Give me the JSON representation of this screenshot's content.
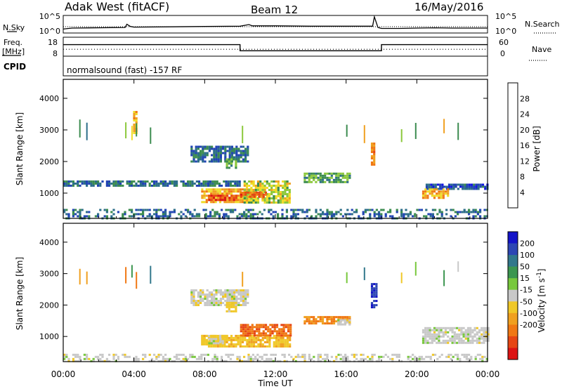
{
  "header": {
    "station": "Adak West (fitACF)",
    "beam": "Beam 12",
    "date": "16/May/2016"
  },
  "strip_labels": {
    "nsky": "N.Sky",
    "nsearch": "N.Search",
    "freq_line1": "Freq.",
    "freq_line2": "[MHz]",
    "nave": "Nave",
    "cpid": "CPID"
  },
  "strip_ticks": {
    "nsky_left": [
      "10^5",
      "10^0"
    ],
    "nsky_right": [
      "10^5",
      "10^0"
    ],
    "freq_left": [
      "18",
      "8"
    ],
    "freq_right": [
      "60",
      "0"
    ]
  },
  "cpid_text": "normalsound (fast) -157 RF",
  "colors": {
    "axis": "#000000",
    "power_scale": [
      "#1414e6",
      "#2244b4",
      "#2d6e8a",
      "#3c8c50",
      "#8cc83c",
      "#f0dc28",
      "#f0a020",
      "#f07814",
      "#e64614",
      "#dc1414"
    ],
    "velocity_scale": [
      "#1414c8",
      "#2d46b4",
      "#32788c",
      "#3c9650",
      "#78c83c",
      "#c8c8c8",
      "#f0c828",
      "#f0a020",
      "#f07814",
      "#e64614",
      "#dc1414"
    ]
  },
  "chart_data": [
    {
      "type": "line",
      "panel": "N.Sky / N.Search",
      "ylabel": "N.Sky",
      "right_label": "N.Search",
      "note": "noise level, log scale 10^0 to 10^5",
      "x_hours": [
        0.0,
        0.3,
        0.5,
        3.5,
        3.6,
        3.8,
        4.0,
        6.0,
        8.0,
        10.0,
        10.5,
        10.7,
        12.0,
        14.0,
        16.0,
        17.5,
        17.6,
        17.8,
        18.0,
        19.0,
        20.0,
        21.0,
        22.0,
        24.0
      ],
      "values": [
        1.0,
        1.2,
        1.3,
        1.5,
        2.5,
        1.8,
        1.6,
        1.7,
        1.8,
        1.9,
        2.4,
        2.0,
        2.0,
        1.9,
        1.9,
        1.9,
        4.8,
        1.5,
        1.2,
        1.2,
        1.3,
        1.4,
        1.3,
        1.3
      ],
      "ylim": [
        0,
        5
      ]
    },
    {
      "type": "line",
      "panel": "Freq. / Nave",
      "ylabel": "Freq. [MHz]",
      "right_label": "Nave",
      "series": [
        {
          "name": "Freq.",
          "x_hours": [
            0,
            10.0,
            10.0,
            18.0,
            18.0,
            24
          ],
          "values": [
            14.4,
            14.4,
            10.8,
            10.8,
            14.4,
            14.4
          ]
        },
        {
          "name": "Nave",
          "x_hours": [
            0,
            24
          ],
          "values": [
            22,
            22
          ]
        }
      ],
      "ylim_left": [
        8,
        18
      ],
      "ylim_right": [
        0,
        60
      ]
    },
    {
      "type": "heatmap",
      "panel": "Power",
      "ylabel": "Slant Range [km]",
      "colorbar_label": "Power [dB]",
      "colorbar_ticks": [
        "4",
        "8",
        "12",
        "16",
        "20",
        "24",
        "28"
      ],
      "colorbar_range": [
        0,
        32
      ],
      "yticks": [
        "1000",
        "2000",
        "3000",
        "4000"
      ],
      "ylim": [
        200,
        4600
      ],
      "xlim": [
        0,
        24
      ],
      "regions": [
        {
          "t0": 0.0,
          "t1": 10.0,
          "r0": 1250,
          "r1": 1400,
          "value": 8
        },
        {
          "t0": 7.8,
          "t1": 10.5,
          "r0": 700,
          "r1": 1150,
          "value": 20
        },
        {
          "t0": 8.2,
          "t1": 9.8,
          "r0": 750,
          "r1": 950,
          "value": 27
        },
        {
          "t0": 10.2,
          "t1": 12.8,
          "r0": 700,
          "r1": 1400,
          "value": 16
        },
        {
          "t0": 10.0,
          "t1": 11.5,
          "r0": 850,
          "r1": 1050,
          "value": 25
        },
        {
          "t0": 7.2,
          "t1": 10.4,
          "r0": 2000,
          "r1": 2500,
          "value": 8
        },
        {
          "t0": 9.2,
          "t1": 9.8,
          "r0": 1800,
          "r1": 2100,
          "value": 12
        },
        {
          "t0": 13.6,
          "t1": 16.2,
          "r0": 1350,
          "r1": 1650,
          "value": 12
        },
        {
          "t0": 20.5,
          "t1": 24.0,
          "r0": 1100,
          "r1": 1300,
          "value": 6
        },
        {
          "t0": 20.3,
          "t1": 21.8,
          "r0": 850,
          "r1": 1150,
          "value": 21
        },
        {
          "t0": 17.4,
          "t1": 17.6,
          "r0": 1900,
          "r1": 2600,
          "value": 23
        },
        {
          "t0": 3.95,
          "t1": 4.1,
          "r0": 2900,
          "r1": 3600,
          "value": 20
        },
        {
          "t0": 0.0,
          "t1": 24.0,
          "r0": 200,
          "r1": 500,
          "value": 8
        }
      ]
    },
    {
      "type": "heatmap",
      "panel": "Velocity",
      "ylabel": "Slant Range [km]",
      "colorbar_label": "Velocity [m s^-1]",
      "colorbar_ticks": [
        "200",
        "100",
        "50",
        "15",
        "-15",
        "-50",
        "-100",
        "-200"
      ],
      "yticks": [
        "1000",
        "2000",
        "3000",
        "4000"
      ],
      "ylim": [
        200,
        4600
      ],
      "xlim": [
        0,
        24
      ],
      "regions": [
        {
          "t0": 7.8,
          "t1": 12.8,
          "r0": 700,
          "r1": 1050,
          "value": -60
        },
        {
          "t0": 10.0,
          "t1": 12.8,
          "r0": 1000,
          "r1": 1400,
          "value": -150
        },
        {
          "t0": 7.8,
          "t1": 9.2,
          "r0": 750,
          "r1": 1050,
          "value": -40
        },
        {
          "t0": 8.2,
          "t1": 9.0,
          "r0": 750,
          "r1": 950,
          "value": 0
        },
        {
          "t0": 7.2,
          "t1": 10.4,
          "r0": 2000,
          "r1": 2500,
          "value": 0
        },
        {
          "t0": 9.2,
          "t1": 9.8,
          "r0": 1800,
          "r1": 2100,
          "value": -30
        },
        {
          "t0": 13.6,
          "t1": 16.2,
          "r0": 1400,
          "r1": 1650,
          "value": -120
        },
        {
          "t0": 15.5,
          "t1": 16.2,
          "r0": 1350,
          "r1": 1550,
          "value": 0
        },
        {
          "t0": 20.3,
          "t1": 24.0,
          "r0": 800,
          "r1": 1300,
          "value": 0
        },
        {
          "t0": 17.4,
          "t1": 17.7,
          "r0": 1900,
          "r1": 2700,
          "value": 200
        },
        {
          "t0": 0.0,
          "t1": 24.0,
          "r0": 200,
          "r1": 450,
          "value": 0
        }
      ]
    }
  ],
  "xaxis": {
    "ticks": [
      "00:00",
      "04:00",
      "08:00",
      "12:00",
      "16:00",
      "20:00",
      "00:00"
    ],
    "label": "Time UT"
  }
}
